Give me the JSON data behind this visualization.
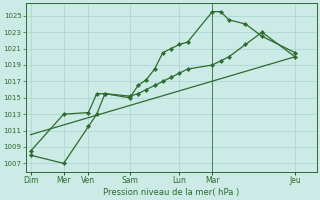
{
  "title": "Pression niveau de la mer( hPa )",
  "bg_color": "#cceae6",
  "grid_color": "#aad4d0",
  "line_color": "#2d6b2d",
  "ylim": [
    1006,
    1026.5
  ],
  "ytick_vals": [
    1007,
    1009,
    1011,
    1013,
    1015,
    1017,
    1019,
    1021,
    1023,
    1025
  ],
  "xlim": [
    -0.3,
    17.3
  ],
  "xtick_positions": [
    0,
    2,
    3.5,
    6,
    9,
    11,
    16
  ],
  "xtick_labels": [
    "Dim",
    "Mer",
    "Ven",
    "Sam",
    "Lun",
    "Mar",
    "Jeu"
  ],
  "vline_x": 11,
  "line1_x": [
    0,
    2,
    3.5,
    4,
    4.5,
    6,
    6.5,
    7,
    7.5,
    8,
    8.5,
    9,
    9.5,
    11,
    11.5,
    12,
    13,
    14,
    16
  ],
  "line1_y": [
    1008,
    1007,
    1011.5,
    1013,
    1015.5,
    1015,
    1016.5,
    1017.2,
    1018.5,
    1020.5,
    1021,
    1021.5,
    1021.8,
    1025.5,
    1025.5,
    1024.5,
    1024,
    1022.5,
    1020.5
  ],
  "line2_x": [
    0,
    2,
    3.5,
    4,
    4.5,
    6,
    6.5,
    7,
    7.5,
    8,
    8.5,
    9,
    9.5,
    11,
    11.5,
    12,
    13,
    14,
    16
  ],
  "line2_y": [
    1008.5,
    1013,
    1013.2,
    1015.5,
    1015.5,
    1015.2,
    1015.5,
    1016,
    1016.5,
    1017,
    1017.5,
    1018,
    1018.5,
    1019,
    1019.5,
    1020,
    1021.5,
    1023,
    1020
  ],
  "line3_x": [
    0,
    16
  ],
  "line3_y": [
    1010.5,
    1020
  ]
}
